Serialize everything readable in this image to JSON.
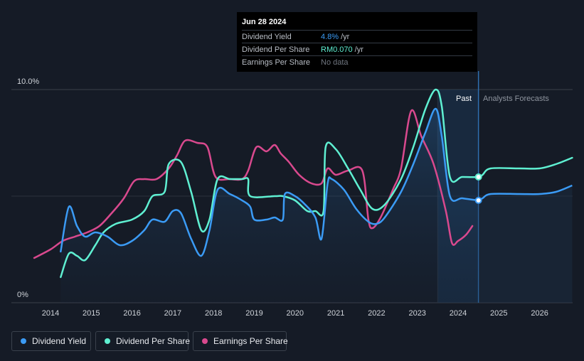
{
  "tooltip": {
    "date": "Jun 28 2024",
    "rows": [
      {
        "label": "Dividend Yield",
        "value": "4.8%",
        "unit": "/yr",
        "color": "#3b9bf5"
      },
      {
        "label": "Dividend Per Share",
        "value": "RM0.070",
        "unit": "/yr",
        "color": "#5ff0d2"
      },
      {
        "label": "Earnings Per Share",
        "value": "No data",
        "unit": "",
        "color": "#6f757f"
      }
    ]
  },
  "period_labels": {
    "past": "Past",
    "forecast": "Analysts Forecasts"
  },
  "legend": [
    {
      "label": "Dividend Yield",
      "color": "#3b9bf5"
    },
    {
      "label": "Dividend Per Share",
      "color": "#5ff0d2"
    },
    {
      "label": "Earnings Per Share",
      "color": "#d9498e"
    }
  ],
  "chart_data": {
    "type": "line",
    "ylim": [
      0,
      10
    ],
    "y_ticks": [
      {
        "value": 10,
        "label": "10.0%"
      },
      {
        "value": 0,
        "label": "0%"
      }
    ],
    "x_ticks": [
      "2014",
      "2015",
      "2016",
      "2017",
      "2018",
      "2019",
      "2020",
      "2021",
      "2022",
      "2023",
      "2024",
      "2025",
      "2026"
    ],
    "xlim": [
      2013.4,
      2026.8
    ],
    "past_end": 2024.5,
    "highlight_start": 2023.5,
    "series": [
      {
        "name": "Dividend Yield",
        "color": "#3b9bf5",
        "fill": true,
        "points": [
          [
            2014.25,
            2.4
          ],
          [
            2014.45,
            4.5
          ],
          [
            2014.65,
            3.6
          ],
          [
            2014.85,
            3.1
          ],
          [
            2015.1,
            3.3
          ],
          [
            2015.4,
            3.1
          ],
          [
            2015.7,
            2.7
          ],
          [
            2016.0,
            2.9
          ],
          [
            2016.3,
            3.4
          ],
          [
            2016.5,
            3.9
          ],
          [
            2016.8,
            3.8
          ],
          [
            2017.0,
            4.3
          ],
          [
            2017.2,
            4.2
          ],
          [
            2017.45,
            3.0
          ],
          [
            2017.7,
            2.2
          ],
          [
            2017.9,
            3.4
          ],
          [
            2018.1,
            5.3
          ],
          [
            2018.4,
            5.1
          ],
          [
            2018.7,
            4.8
          ],
          [
            2018.9,
            4.5
          ],
          [
            2019.0,
            3.9
          ],
          [
            2019.3,
            3.9
          ],
          [
            2019.5,
            4.0
          ],
          [
            2019.7,
            3.9
          ],
          [
            2019.75,
            5.1
          ],
          [
            2020.0,
            5.0
          ],
          [
            2020.25,
            4.6
          ],
          [
            2020.5,
            4.0
          ],
          [
            2020.65,
            3.0
          ],
          [
            2020.8,
            5.6
          ],
          [
            2020.9,
            5.8
          ],
          [
            2021.2,
            5.3
          ],
          [
            2021.5,
            4.4
          ],
          [
            2021.8,
            3.8
          ],
          [
            2022.0,
            3.7
          ],
          [
            2022.2,
            4.0
          ],
          [
            2022.6,
            5.2
          ],
          [
            2022.9,
            6.5
          ],
          [
            2023.2,
            8.0
          ],
          [
            2023.45,
            9.1
          ],
          [
            2023.6,
            7.8
          ],
          [
            2023.8,
            5.0
          ],
          [
            2024.1,
            4.9
          ],
          [
            2024.5,
            4.8
          ]
        ]
      },
      {
        "name": "Dividend Per Share",
        "color": "#5ff0d2",
        "fill": false,
        "points": [
          [
            2014.25,
            1.2
          ],
          [
            2014.45,
            2.3
          ],
          [
            2014.65,
            2.2
          ],
          [
            2014.85,
            2.0
          ],
          [
            2015.1,
            2.7
          ],
          [
            2015.3,
            3.3
          ],
          [
            2015.6,
            3.7
          ],
          [
            2016.0,
            3.9
          ],
          [
            2016.3,
            4.3
          ],
          [
            2016.5,
            5.0
          ],
          [
            2016.8,
            5.2
          ],
          [
            2016.9,
            6.5
          ],
          [
            2017.2,
            6.6
          ],
          [
            2017.45,
            5.2
          ],
          [
            2017.7,
            3.4
          ],
          [
            2017.9,
            3.9
          ],
          [
            2018.1,
            5.8
          ],
          [
            2018.4,
            5.8
          ],
          [
            2018.7,
            5.8
          ],
          [
            2018.85,
            5.8
          ],
          [
            2018.9,
            5.0
          ],
          [
            2019.5,
            5.0
          ],
          [
            2019.7,
            5.0
          ],
          [
            2020.0,
            4.8
          ],
          [
            2020.3,
            4.3
          ],
          [
            2020.5,
            4.3
          ],
          [
            2020.7,
            4.3
          ],
          [
            2020.75,
            7.3
          ],
          [
            2021.0,
            7.2
          ],
          [
            2021.3,
            6.3
          ],
          [
            2021.6,
            5.3
          ],
          [
            2021.9,
            4.4
          ],
          [
            2022.2,
            4.6
          ],
          [
            2022.6,
            5.8
          ],
          [
            2022.9,
            7.3
          ],
          [
            2023.2,
            9.1
          ],
          [
            2023.45,
            10.0
          ],
          [
            2023.6,
            9.2
          ],
          [
            2023.8,
            5.9
          ],
          [
            2024.1,
            5.9
          ],
          [
            2024.5,
            5.9
          ],
          [
            2024.6,
            6.0
          ],
          [
            2024.8,
            6.3
          ],
          [
            2025.5,
            6.3
          ],
          [
            2026.0,
            6.3
          ],
          [
            2026.4,
            6.5
          ],
          [
            2026.8,
            6.8
          ]
        ]
      },
      {
        "name": "Earnings Per Share",
        "color": "#d9498e",
        "fill": false,
        "points": [
          [
            2013.6,
            2.1
          ],
          [
            2014.0,
            2.5
          ],
          [
            2014.3,
            2.9
          ],
          [
            2014.6,
            3.1
          ],
          [
            2014.9,
            3.3
          ],
          [
            2015.2,
            3.6
          ],
          [
            2015.5,
            4.2
          ],
          [
            2015.8,
            4.9
          ],
          [
            2016.05,
            5.7
          ],
          [
            2016.3,
            5.8
          ],
          [
            2016.6,
            5.8
          ],
          [
            2016.9,
            6.3
          ],
          [
            2017.1,
            6.9
          ],
          [
            2017.3,
            7.6
          ],
          [
            2017.6,
            7.5
          ],
          [
            2017.85,
            7.3
          ],
          [
            2018.05,
            5.9
          ],
          [
            2018.4,
            5.8
          ],
          [
            2018.7,
            5.8
          ],
          [
            2018.85,
            6.2
          ],
          [
            2019.05,
            7.3
          ],
          [
            2019.3,
            7.1
          ],
          [
            2019.5,
            7.4
          ],
          [
            2019.65,
            7.0
          ],
          [
            2019.85,
            6.6
          ],
          [
            2020.1,
            6.0
          ],
          [
            2020.4,
            5.6
          ],
          [
            2020.65,
            5.6
          ],
          [
            2020.8,
            6.3
          ],
          [
            2021.0,
            6.0
          ],
          [
            2021.3,
            6.2
          ],
          [
            2021.65,
            6.2
          ],
          [
            2021.8,
            3.9
          ],
          [
            2021.9,
            3.5
          ],
          [
            2022.1,
            4.0
          ],
          [
            2022.4,
            5.3
          ],
          [
            2022.6,
            6.3
          ],
          [
            2022.85,
            9.0
          ],
          [
            2023.1,
            7.8
          ],
          [
            2023.4,
            6.5
          ],
          [
            2023.7,
            4.3
          ],
          [
            2023.85,
            2.8
          ],
          [
            2024.0,
            2.9
          ],
          [
            2024.2,
            3.2
          ],
          [
            2024.35,
            3.6
          ]
        ]
      }
    ],
    "markers": [
      {
        "series": "Dividend Yield",
        "x": 2024.5,
        "y": 4.8
      },
      {
        "series": "Dividend Per Share",
        "x": 2024.5,
        "y": 5.9
      }
    ]
  }
}
